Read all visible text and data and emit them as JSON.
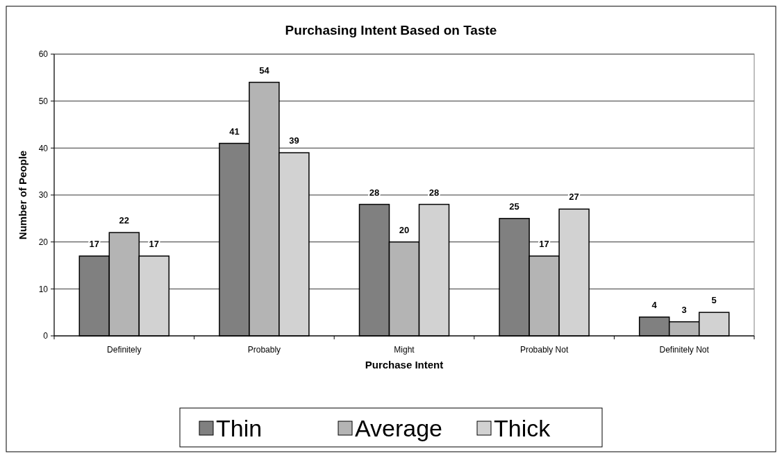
{
  "chart_data": {
    "type": "bar",
    "title": "Purchasing Intent Based on Taste",
    "xlabel": "Purchase Intent",
    "ylabel": "Number of People",
    "categories": [
      "Definitely",
      "Probably",
      "Might",
      "Probably Not",
      "Definitely Not"
    ],
    "series": [
      {
        "name": "Thin",
        "color": "#808080",
        "values": [
          17,
          41,
          28,
          25,
          4
        ]
      },
      {
        "name": "Average",
        "color": "#b4b4b4",
        "values": [
          22,
          54,
          20,
          17,
          3
        ]
      },
      {
        "name": "Thick",
        "color": "#d2d2d2",
        "values": [
          17,
          39,
          28,
          27,
          5
        ]
      }
    ],
    "ylim": [
      0,
      60
    ],
    "yticks": [
      0,
      10,
      20,
      30,
      40,
      50,
      60
    ],
    "grid": "y",
    "legend": "bottom",
    "data_labels": true
  }
}
